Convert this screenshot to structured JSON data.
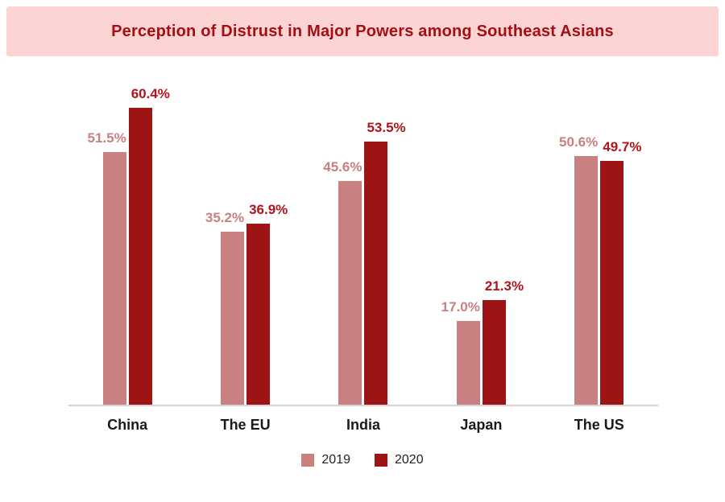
{
  "header": {
    "background": "#fcd4d4",
    "title_color": "#a60e13"
  },
  "chart_data": {
    "type": "bar",
    "title": "Perception of Distrust in Major Powers among Southeast Asians",
    "categories": [
      "China",
      "The EU",
      "India",
      "Japan",
      "The US"
    ],
    "series": [
      {
        "name": "2019",
        "color": "#c98080",
        "label_color": "#c98080",
        "values": [
          51.5,
          35.2,
          45.6,
          17.0,
          50.6
        ]
      },
      {
        "name": "2020",
        "color": "#9e1414",
        "label_color": "#b01419",
        "values": [
          60.4,
          36.9,
          53.5,
          21.3,
          49.7
        ]
      }
    ],
    "value_suffix": "%",
    "xlabel": "",
    "ylabel": "",
    "ylim": [
      0,
      66
    ],
    "grid": false,
    "legend_position": "bottom"
  }
}
